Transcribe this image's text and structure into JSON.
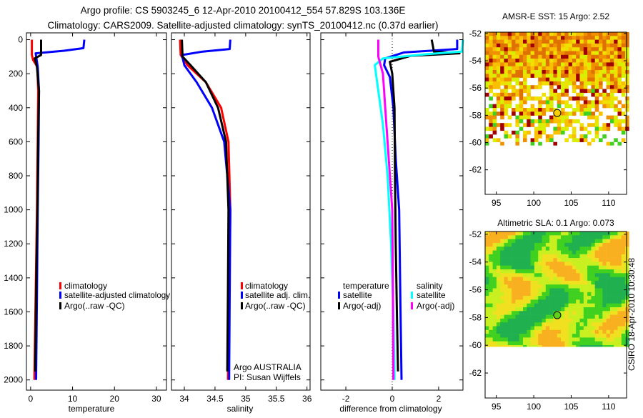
{
  "title": {
    "line1": "Argo profile: CS 5903245_6 12-Apr-2010 20100412_554 57.829S 103.136E",
    "line2": "Climatology: CARS2009. Satellite-adjusted climatology: synTS_20100412.nc (0.37d earlier)"
  },
  "colors": {
    "climatology": "#ff0000",
    "satellite": "#0000ff",
    "argo": "#000000",
    "sal_satellite": "#00ffff",
    "sal_argo": "#ff00ff"
  },
  "chart_data": [
    {
      "type": "line",
      "id": "temperature",
      "xlabel": "temperature",
      "ylabel": "",
      "xlim": [
        -1,
        32.4
      ],
      "ylim": [
        -40,
        2060
      ],
      "xticks": [
        0,
        10,
        20,
        30
      ],
      "yticks": [
        0,
        200,
        400,
        600,
        800,
        1000,
        1200,
        1400,
        1600,
        1800,
        2000
      ],
      "legend": [
        "climatology",
        "satellite-adjusted climatology",
        "Argo(..raw -QC)"
      ],
      "series": [
        {
          "name": "climatology",
          "color": "#ff0000",
          "depth": [
            0,
            90,
            120,
            160,
            300,
            600,
            1000,
            1500,
            2000
          ],
          "values": [
            0.3,
            0.3,
            0.6,
            1.6,
            1.8,
            1.7,
            1.5,
            1.2,
            0.9
          ]
        },
        {
          "name": "satellite-adjusted climatology",
          "color": "#0000ff",
          "depth": [
            0,
            50,
            65,
            80,
            160,
            300,
            600,
            1000,
            1500,
            2000
          ],
          "values": [
            12.8,
            12.6,
            8,
            1.2,
            1.7,
            2.0,
            1.9,
            1.7,
            1.5,
            1.3
          ]
        },
        {
          "name": "Argo(..raw -QC)",
          "color": "#000000",
          "depth": [
            0,
            90,
            110,
            160,
            300,
            600,
            1000,
            1500,
            1950
          ],
          "values": [
            2.5,
            2.5,
            1.0,
            1.5,
            2.0,
            1.8,
            1.6,
            1.3,
            1.1
          ]
        }
      ]
    },
    {
      "type": "line",
      "id": "salinity",
      "xlabel": "salinity",
      "xlim": [
        33.79,
        36.05
      ],
      "ylim": [
        -40,
        2060
      ],
      "xticks": [
        34,
        34.5,
        35,
        35.5,
        36
      ],
      "xticklabels": [
        "34",
        "34.5",
        "35",
        "35.5",
        "36"
      ],
      "yticks": [
        0,
        200,
        400,
        600,
        800,
        1000,
        1200,
        1400,
        1600,
        1800,
        2000
      ],
      "legend": [
        "climatology",
        "satellite adj. clim.",
        "Argo(..raw -QC)"
      ],
      "series": [
        {
          "name": "climatology",
          "color": "#ff0000",
          "depth": [
            0,
            90,
            150,
            250,
            400,
            600,
            1000,
            1500,
            2000
          ],
          "values": [
            33.93,
            33.94,
            34.05,
            34.35,
            34.6,
            34.72,
            34.75,
            34.73,
            34.71
          ]
        },
        {
          "name": "satellite adj. clim.",
          "color": "#0000ff",
          "depth": [
            0,
            55,
            70,
            90,
            150,
            250,
            400,
            600,
            1000,
            1500,
            2000
          ],
          "values": [
            34.75,
            34.74,
            34.3,
            33.96,
            34.0,
            34.2,
            34.45,
            34.65,
            34.75,
            34.74,
            34.73
          ]
        },
        {
          "name": "Argo(..raw -QC)",
          "color": "#000000",
          "depth": [
            0,
            100,
            150,
            250,
            400,
            600,
            1000,
            1500,
            1950
          ],
          "values": [
            33.96,
            33.97,
            34.1,
            34.35,
            34.55,
            34.68,
            34.72,
            34.71,
            34.7
          ]
        }
      ],
      "annotation": [
        "Argo AUSTRALIA",
        "PI: Susan Wijffels"
      ]
    },
    {
      "type": "line",
      "id": "difference",
      "xlabel": "difference from climatology",
      "xlim": [
        -3.08,
        3.05
      ],
      "ylim": [
        -40,
        2060
      ],
      "xticks": [
        -2,
        0,
        2
      ],
      "yticks": [
        0,
        200,
        400,
        600,
        800,
        1000,
        1200,
        1400,
        1600,
        1800,
        2000
      ],
      "legend_groups": [
        {
          "heading": "temperature",
          "entries": [
            "satellite",
            "Argo(-adj)"
          ]
        },
        {
          "heading": "salinity",
          "entries": [
            "satellite",
            "Argo(-adj)"
          ]
        }
      ],
      "series": [
        {
          "name": "temperature satellite",
          "color": "#0000ff",
          "depth": [
            0,
            55,
            75,
            110,
            150,
            220,
            400,
            700,
            1000,
            1500,
            2000
          ],
          "values": [
            2.8,
            2.8,
            0.5,
            -0.3,
            -0.35,
            -0.1,
            0.05,
            0.15,
            0.3,
            0.35,
            0.4
          ]
        },
        {
          "name": "temperature Argo(-adj)",
          "color": "#000000",
          "depth": [
            0,
            70,
            80,
            95,
            130,
            200,
            400,
            800,
            1200,
            1600,
            1950
          ],
          "values": [
            1.7,
            1.8,
            2.9,
            0.8,
            -0.1,
            0.0,
            0.1,
            0.12,
            0.15,
            0.2,
            0.25
          ]
        },
        {
          "name": "salinity satellite",
          "color": "#00ffff",
          "depth": [
            0,
            70,
            85,
            110,
            150,
            300,
            500,
            800,
            1200,
            1600,
            2000
          ],
          "values": [
            3.05,
            3.0,
            1.5,
            -0.4,
            -0.75,
            -0.6,
            -0.4,
            -0.2,
            -0.05,
            0.05,
            0.1
          ]
        },
        {
          "name": "salinity Argo(-adj)",
          "color": "#ff00ff",
          "depth": [
            0,
            100,
            200,
            400,
            700,
            1000,
            1500,
            2000
          ],
          "values": [
            -0.6,
            -0.6,
            -0.4,
            -0.3,
            -0.15,
            0.0,
            0.03,
            0.05
          ]
        }
      ]
    },
    {
      "type": "heatmap",
      "id": "sst_map",
      "title": "AMSR-E SST: 15 Argo: 2.52",
      "xlim": [
        93.5,
        112.4
      ],
      "ylim": [
        -63.8,
        -51.9
      ],
      "xticks": [
        95,
        100,
        105,
        110
      ],
      "yticks": [
        -52,
        -54,
        -56,
        -58,
        -60,
        -62
      ],
      "data_extent_lat": [
        -60.2,
        -51.9
      ],
      "argo_position": [
        103.136,
        -57.829
      ]
    },
    {
      "type": "heatmap",
      "id": "sla_map",
      "title": "Altimetric SLA: 0.1 Argo: 0.073",
      "xlim": [
        93.5,
        112.4
      ],
      "ylim": [
        -63.8,
        -51.8
      ],
      "xticks": [
        95,
        100,
        105,
        110
      ],
      "yticks": [
        -52,
        -54,
        -56,
        -58,
        -60,
        -62
      ],
      "data_extent_lat": [
        -60.1,
        -51.8
      ],
      "argo_position": [
        103.136,
        -57.829
      ]
    }
  ],
  "footer": "CSIRO 18-Apr-2010 10:30:48"
}
